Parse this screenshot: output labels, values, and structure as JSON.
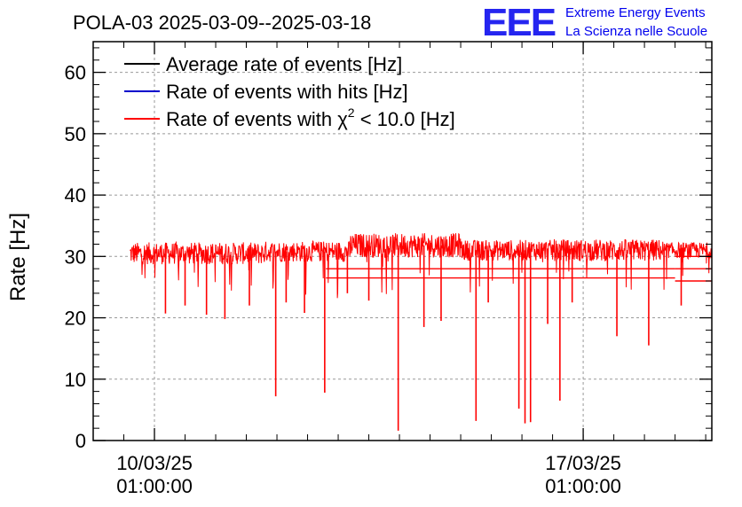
{
  "chart_data": {
    "type": "line",
    "title": "POLA-03 2025-03-09--2025-03-18",
    "ylabel": "Rate [Hz]",
    "xlabel": "",
    "ylim": [
      0,
      65
    ],
    "yticks": [
      0,
      10,
      20,
      30,
      40,
      50,
      60
    ],
    "xlim_days": [
      0,
      10.1
    ],
    "xticks": [
      {
        "date": "10/03/25",
        "time": "01:00:00",
        "day": 1.0
      },
      {
        "date": "17/03/25",
        "time": "01:00:00",
        "day": 8.0
      }
    ],
    "grid": true,
    "legend": {
      "position": "top-left",
      "entries": [
        {
          "label": "Average rate of events [Hz]",
          "color": "#000000"
        },
        {
          "label": "Rate of events with hits [Hz]",
          "color": "#0000cc"
        },
        {
          "label_prefix": "Rate of events with ",
          "label_symbol": "χ",
          "label_sup": "2",
          "label_suffix": " < 10.0 [Hz]",
          "color": "#ff0000"
        }
      ]
    },
    "series": [
      {
        "name": "Rate of events with χ2 < 10.0 [Hz]",
        "color": "#ff0000",
        "start_day": 0.6,
        "end_day": 10.1,
        "baseline_segments": [
          {
            "from_day": 0.6,
            "to_day": 2.8,
            "value": 30.5,
            "spread": 1.8
          },
          {
            "from_day": 2.8,
            "to_day": 4.2,
            "value": 30.8,
            "spread": 1.7
          },
          {
            "from_day": 4.2,
            "to_day": 6.0,
            "value": 31.8,
            "spread": 2.0
          },
          {
            "from_day": 6.0,
            "to_day": 7.5,
            "value": 31.0,
            "spread": 1.7
          },
          {
            "from_day": 7.5,
            "to_day": 9.3,
            "value": 31.0,
            "spread": 1.8
          },
          {
            "from_day": 9.3,
            "to_day": 10.1,
            "value": 31.0,
            "spread": 1.3
          }
        ],
        "dips": [
          {
            "day": 1.18,
            "value": 20.7
          },
          {
            "day": 1.5,
            "value": 22.0
          },
          {
            "day": 1.85,
            "value": 20.5
          },
          {
            "day": 2.15,
            "value": 19.8
          },
          {
            "day": 2.55,
            "value": 22.0
          },
          {
            "day": 2.98,
            "value": 7.2
          },
          {
            "day": 3.15,
            "value": 22.5
          },
          {
            "day": 3.45,
            "value": 20.8
          },
          {
            "day": 3.78,
            "value": 7.8
          },
          {
            "day": 4.15,
            "value": 24.0
          },
          {
            "day": 4.5,
            "value": 22.8
          },
          {
            "day": 4.98,
            "value": 1.6
          },
          {
            "day": 5.4,
            "value": 18.5
          },
          {
            "day": 5.68,
            "value": 19.5
          },
          {
            "day": 6.25,
            "value": 3.2
          },
          {
            "day": 6.45,
            "value": 22.5
          },
          {
            "day": 6.95,
            "value": 5.2
          },
          {
            "day": 7.05,
            "value": 2.8
          },
          {
            "day": 7.14,
            "value": 3.0
          },
          {
            "day": 7.42,
            "value": 19.0
          },
          {
            "day": 7.62,
            "value": 6.5
          },
          {
            "day": 7.82,
            "value": 22.5
          },
          {
            "day": 8.55,
            "value": 17.0
          },
          {
            "day": 9.07,
            "value": 15.5
          },
          {
            "day": 9.6,
            "value": 22.0
          }
        ],
        "extra_lines": [
          {
            "from_day": 9.5,
            "to_day": 10.1,
            "value": 26.0
          },
          {
            "from_day": 9.5,
            "to_day": 10.1,
            "value": 28.0
          },
          {
            "from_day": 9.5,
            "to_day": 10.1,
            "value": 30.0
          },
          {
            "from_day": 3.8,
            "to_day": 9.5,
            "value": 26.5
          },
          {
            "from_day": 3.8,
            "to_day": 9.5,
            "value": 28.0
          }
        ]
      }
    ]
  },
  "logo": {
    "letters": "EEE",
    "line1": "Extreme Energy Events",
    "line2": "La Scienza nelle Scuole",
    "color": "#0000ee"
  }
}
